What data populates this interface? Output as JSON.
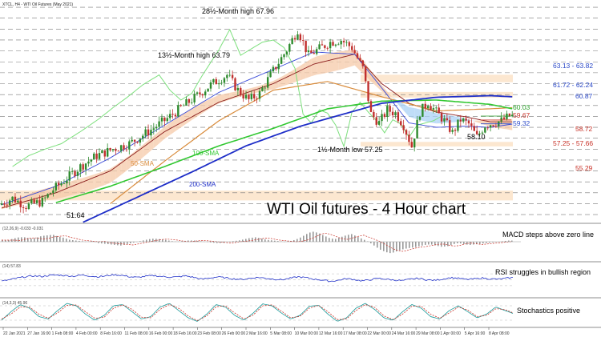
{
  "header": {
    "symbol_line": "XTCL, H4 - WTI Oil Futures (May 2021)"
  },
  "colors": {
    "bull": "#2e8b2e",
    "bear": "#c0302e",
    "sma50": "#d98c3c",
    "sma100": "#32c832",
    "sma200": "#1f2fc8",
    "tenkan": "#3a4bd8",
    "kijun": "#8b1d1d",
    "chikou": "#7ee07e",
    "cloud_bear": "#f5c9a8",
    "cloud_bull": "#a9d2f5",
    "zone": "#fbe3c8",
    "level_red": "#c83228",
    "level_blue": "#2b49c8",
    "level_green": "#2aa02a"
  },
  "chart_data": [
    {
      "type": "candlestick",
      "title": "WTI Oil futures - 4 Hour chart",
      "ylim": [
        50.2,
        70.3
      ],
      "grid": true,
      "x_ticks": [
        "22 Jan 2021",
        "27 Jan 16:00",
        "1 Feb 08:00",
        "4 Feb 00:00",
        "8 Feb 16:00",
        "11 Feb 08:00",
        "16 Feb 00:00",
        "18 Feb 16:00",
        "23 Feb 08:00",
        "26 Feb 00:00",
        "2 Mar 16:00",
        "5 Mar 08:00",
        "10 Mar 00:00",
        "12 Mar 16:00",
        "17 Mar 08:00",
        "22 Mar 00:00",
        "24 Mar 16:00",
        "29 Mar 08:00",
        "1 Apr 00:00",
        "5 Apr 16:00",
        "8 Apr 08:00"
      ],
      "price_path": [
        [
          0,
          51.9
        ],
        [
          5,
          52.5
        ],
        [
          10,
          51.8
        ],
        [
          16,
          52.2
        ],
        [
          20,
          53.3
        ],
        [
          24,
          54.1
        ],
        [
          30,
          55.4
        ],
        [
          36,
          56.4
        ],
        [
          42,
          57.0
        ],
        [
          48,
          57.5
        ],
        [
          55,
          58.6
        ],
        [
          62,
          59.8
        ],
        [
          67,
          60.8
        ],
        [
          72,
          61.7
        ],
        [
          78,
          62.9
        ],
        [
          84,
          63.8
        ],
        [
          88,
          62.4
        ],
        [
          92,
          61.5
        ],
        [
          96,
          62.1
        ],
        [
          100,
          63.8
        ],
        [
          106,
          66.1
        ],
        [
          110,
          67.96
        ],
        [
          114,
          65.6
        ],
        [
          118,
          66.2
        ],
        [
          122,
          66.8
        ],
        [
          126,
          67.0
        ],
        [
          130,
          66.3
        ],
        [
          134,
          64.4
        ],
        [
          137,
          60.2
        ],
        [
          140,
          59.4
        ],
        [
          143,
          60.6
        ],
        [
          146,
          60.3
        ],
        [
          149,
          59.2
        ],
        [
          152,
          57.25
        ],
        [
          155,
          60.4
        ],
        [
          158,
          61.3
        ],
        [
          161,
          60.4
        ],
        [
          164,
          59.6
        ],
        [
          167,
          58.5
        ],
        [
          170,
          59.7
        ],
        [
          173,
          59.3
        ],
        [
          176,
          58.1
        ],
        [
          179,
          59.2
        ],
        [
          182,
          59.4
        ],
        [
          185,
          59.6
        ],
        [
          188,
          60.03
        ]
      ],
      "sma_50": [
        [
          40,
          52.0
        ],
        [
          60,
          55.9
        ],
        [
          80,
          59.6
        ],
        [
          100,
          62.4
        ],
        [
          120,
          63.2
        ],
        [
          140,
          61.8
        ],
        [
          160,
          60.5
        ],
        [
          180,
          60.7
        ],
        [
          188,
          60.8
        ]
      ],
      "sma_100": [
        [
          20,
          52.1
        ],
        [
          40,
          53.6
        ],
        [
          60,
          55.4
        ],
        [
          80,
          57.3
        ],
        [
          100,
          58.9
        ],
        [
          120,
          60.7
        ],
        [
          140,
          61.4
        ],
        [
          160,
          61.5
        ],
        [
          180,
          61.1
        ],
        [
          188,
          60.7
        ]
      ],
      "sma_200": [
        [
          30,
          50.3
        ],
        [
          50,
          52.6
        ],
        [
          70,
          54.9
        ],
        [
          90,
          57.3
        ],
        [
          110,
          59.1
        ],
        [
          130,
          60.5
        ],
        [
          140,
          61.2
        ],
        [
          160,
          61.75
        ],
        [
          180,
          61.9
        ],
        [
          188,
          61.8
        ]
      ],
      "ichimoku_lines": {
        "tenkan": [
          [
            0,
            51.9
          ],
          [
            20,
            53.6
          ],
          [
            40,
            56.2
          ],
          [
            60,
            59.2
          ],
          [
            80,
            62.2
          ],
          [
            100,
            64.3
          ],
          [
            115,
            65.9
          ],
          [
            130,
            65.7
          ],
          [
            140,
            62.6
          ],
          [
            150,
            59.4
          ],
          [
            160,
            59.0
          ],
          [
            170,
            59.1
          ],
          [
            180,
            59.0
          ],
          [
            188,
            59.3
          ]
        ],
        "kijun": [
          [
            0,
            51.6
          ],
          [
            20,
            53.0
          ],
          [
            40,
            55.0
          ],
          [
            60,
            58.6
          ],
          [
            80,
            61.3
          ],
          [
            100,
            63.0
          ],
          [
            115,
            64.8
          ],
          [
            130,
            65.7
          ],
          [
            140,
            63.0
          ],
          [
            150,
            61.2
          ],
          [
            160,
            60.4
          ],
          [
            170,
            60.0
          ],
          [
            180,
            59.5
          ],
          [
            188,
            59.5
          ]
        ]
      },
      "levels": [
        {
          "value": 63.13,
          "label": "63.13 - 63.82",
          "zone_to": 63.82
        },
        {
          "value": 61.72,
          "label": "61.72 - 62.24",
          "zone_to": 62.24
        },
        {
          "value": 60.87,
          "label": "60.87"
        },
        {
          "value": 60.03,
          "label": "60.03"
        },
        {
          "value": 59.67,
          "label": "59.67"
        },
        {
          "value": 59.32,
          "label": "59.32"
        },
        {
          "value": 58.72,
          "label": "58.72"
        },
        {
          "value": 57.25,
          "label": "57.25 - 57.66",
          "zone_to": 57.66
        },
        {
          "value": 55.29,
          "label": "55.29"
        }
      ],
      "annotations": {
        "high_28": "28½-Month high 67.96",
        "high_13": "13½-Month high 63.79",
        "low_1": "1½-Month low 57.25",
        "val_5810": "58.10",
        "val_5164": "51.64",
        "sma50_label": "50-SMA",
        "sma100_label": "100-SMA",
        "sma200_label": "200-SMA"
      }
    },
    {
      "type": "bar",
      "title": "MACD steps above zero line",
      "indicator_params": "(12,26,9) -0.033 -0.031",
      "histogram_shape": [
        0.15,
        0.1,
        0.25,
        0.35,
        0.35,
        0.25,
        0.3,
        0.45,
        0.5,
        0.55,
        0.4,
        0.3,
        0.15,
        0.1,
        0.05,
        0.0,
        0.05,
        -0.1,
        -0.15,
        -0.2,
        -0.25,
        -0.3,
        -0.2,
        -0.1,
        0.0,
        0.1,
        0.2,
        0.25,
        0.2,
        0.15,
        0.05,
        0.0,
        0.05,
        0.1,
        0.1,
        0.05,
        0.0,
        -0.05,
        -0.1,
        -0.1,
        0.0,
        0.05,
        0.1,
        0.2,
        0.3,
        0.35,
        0.25,
        0.15,
        0.1,
        0.05,
        0.0,
        0.05,
        0.15,
        0.35,
        0.6,
        0.8,
        0.7,
        0.5,
        0.3,
        0.2,
        0.35,
        0.5,
        0.6,
        0.4,
        0.2,
        0.0,
        -0.3,
        -0.6,
        -0.8,
        -0.9,
        -0.75,
        -0.6,
        -0.5,
        -0.45,
        -0.35,
        -0.25,
        -0.2,
        -0.3,
        -0.4,
        -0.35,
        -0.2,
        -0.1,
        -0.2,
        -0.25,
        -0.2,
        -0.15,
        -0.1,
        -0.05,
        0.0,
        0.05,
        0.1,
        0.08
      ]
    },
    {
      "type": "line",
      "title": "RSI struggles in bullish region",
      "indicator_params": "(14) 57.83",
      "ylim": [
        0,
        100
      ],
      "values": [
        45,
        50,
        56,
        60,
        63,
        61,
        65,
        66,
        64,
        62,
        66,
        63,
        60,
        63,
        67,
        65,
        60,
        58,
        62,
        64,
        61,
        59,
        60,
        63,
        58,
        52,
        56,
        60,
        56,
        53,
        51,
        55,
        58,
        55,
        52,
        50,
        55,
        60,
        57,
        52,
        49,
        45,
        48,
        54,
        51,
        46,
        50,
        55,
        52,
        49,
        47,
        52,
        55,
        50,
        48,
        52,
        57,
        55,
        51,
        53,
        56,
        53,
        52,
        55,
        57.83
      ]
    },
    {
      "type": "line",
      "title": "Stochastics positive",
      "indicator_params": "(14,3,3) 45.96",
      "ylim": [
        0,
        100
      ],
      "series": [
        {
          "values": [
            20,
            55,
            85,
            70,
            35,
            25,
            60,
            90,
            80,
            45,
            20,
            40,
            80,
            85,
            55,
            25,
            35,
            75,
            90,
            60,
            30,
            15,
            45,
            85,
            75,
            40,
            20,
            50,
            88,
            80,
            50,
            25,
            40,
            78,
            82,
            45,
            15,
            30,
            70,
            90,
            65,
            30,
            20,
            55,
            85,
            70,
            35,
            25,
            60,
            80,
            55,
            30,
            45,
            75,
            60,
            46
          ]
        },
        {
          "values": [
            25,
            45,
            75,
            75,
            45,
            28,
            50,
            82,
            84,
            55,
            28,
            32,
            70,
            84,
            65,
            32,
            30,
            65,
            86,
            70,
            38,
            18,
            38,
            76,
            80,
            50,
            25,
            42,
            80,
            84,
            58,
            30,
            36,
            70,
            82,
            55,
            22,
            26,
            60,
            85,
            74,
            38,
            22,
            45,
            78,
            78,
            45,
            28,
            50,
            75,
            62,
            35,
            40,
            68,
            64,
            48
          ]
        }
      ]
    }
  ]
}
